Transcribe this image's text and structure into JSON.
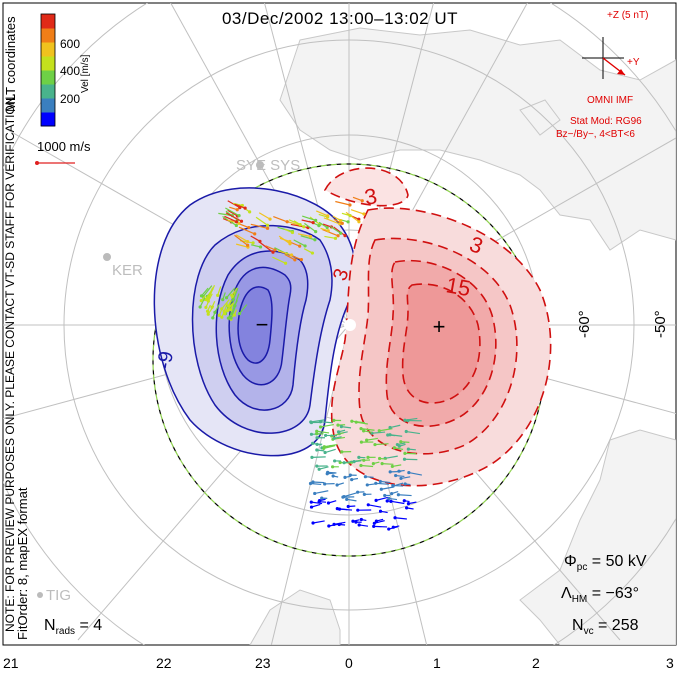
{
  "title": "03/Dec/2002 13:00–13:02 UT",
  "colorbar": {
    "label": "Vel [m/s]",
    "ticks": [
      "600",
      "400",
      "200"
    ],
    "colors": [
      "#0000ff",
      "#3a7fbf",
      "#49b38c",
      "#6ed046",
      "#c4e11d",
      "#f0c21e",
      "#f07e17",
      "#e02a18"
    ]
  },
  "coordinates_label": "MLT coordinates",
  "scale_vector_label": "1000 m/s",
  "imf": {
    "z_label": "+Z (5 nT)",
    "y_label": "+Y",
    "source": "OMNI IMF",
    "stat_mod": "Stat Mod: RG96",
    "condition": "Bz−/By−, 4<BT<6"
  },
  "station_labels": [
    "SYE SYS",
    "KER",
    "TIG"
  ],
  "contour_labels": {
    "positive": [
      "3",
      "3",
      "3",
      "15"
    ],
    "negative": [
      "-9"
    ]
  },
  "cell_symbols": {
    "positive": "+",
    "negative": "−"
  },
  "latitude_labels": [
    "-60°",
    "-50°"
  ],
  "notice": "NOTE: FOR PREVIEW PURPOSES ONLY. PLEASE CONTACT VT-SD STAFF FOR VERIFICATION.",
  "fit_info": "FitOrder: 8,  mapEX format",
  "stats": {
    "n_rads": "N",
    "n_rads_sub": "rads",
    "n_rads_value": "= 4",
    "phi": "Φ",
    "phi_sub": "pc",
    "phi_value": "= 50 kV",
    "lambda": "Λ",
    "lambda_sub": "HM",
    "lambda_value": "= −63°",
    "nvc": "N",
    "nvc_sub": "vc",
    "nvc_value": "= 258"
  },
  "mlt_ticks": [
    "21",
    "22",
    "23",
    "0",
    "1",
    "2",
    "3"
  ]
}
